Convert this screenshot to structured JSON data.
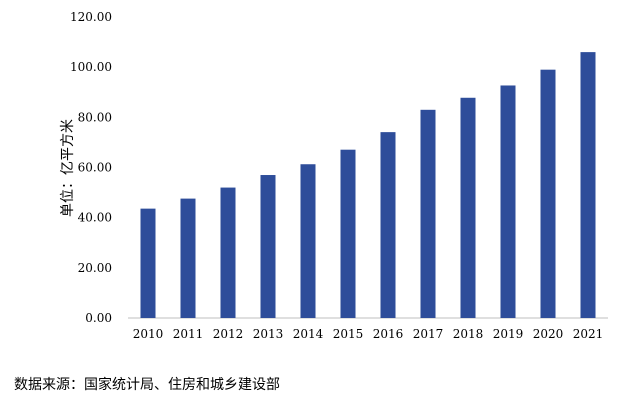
{
  "chart_data": {
    "type": "bar",
    "title": "",
    "xlabel": "",
    "ylabel": "单位：亿平方米",
    "categories": [
      "2010",
      "2011",
      "2012",
      "2013",
      "2014",
      "2015",
      "2016",
      "2017",
      "2018",
      "2019",
      "2020",
      "2021"
    ],
    "values": [
      43.6,
      47.6,
      52.0,
      57.0,
      61.3,
      67.1,
      74.1,
      83.0,
      87.8,
      92.7,
      99.0,
      106.0
    ],
    "ylim": [
      0,
      120
    ],
    "yticks": [
      "0.00",
      "20.00",
      "40.00",
      "60.00",
      "80.00",
      "100.00",
      "120.00"
    ],
    "bar_color": "#2E4D9A",
    "grid": false,
    "legend": "none"
  },
  "footer": {
    "source": "数据来源：国家统计局、住房和城乡建设部"
  }
}
